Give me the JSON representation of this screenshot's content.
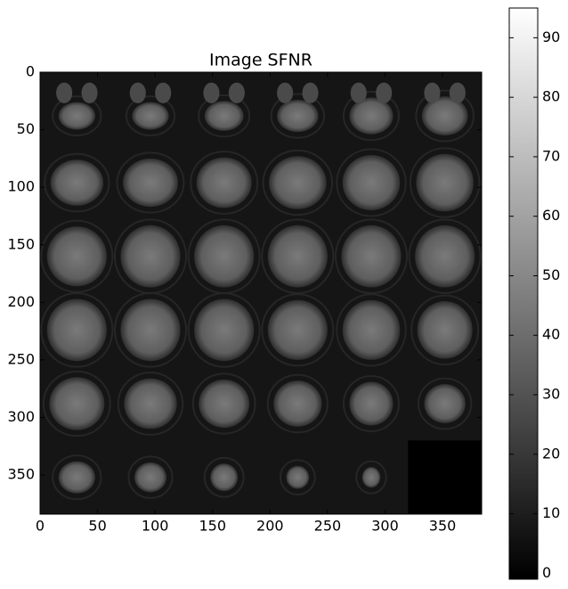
{
  "chart_data": {
    "type": "image",
    "title": "Image SFNR",
    "xlim": [
      0,
      384
    ],
    "ylim": [
      384,
      0
    ],
    "xticks": [
      0,
      50,
      100,
      150,
      200,
      250,
      300,
      350
    ],
    "yticks": [
      0,
      50,
      100,
      150,
      200,
      250,
      300,
      350
    ],
    "colormap": "gray",
    "colorbar": {
      "lim": [
        -1,
        95
      ],
      "ticks": [
        0,
        10,
        20,
        30,
        40,
        50,
        60,
        70,
        80,
        90
      ]
    }
  }
}
